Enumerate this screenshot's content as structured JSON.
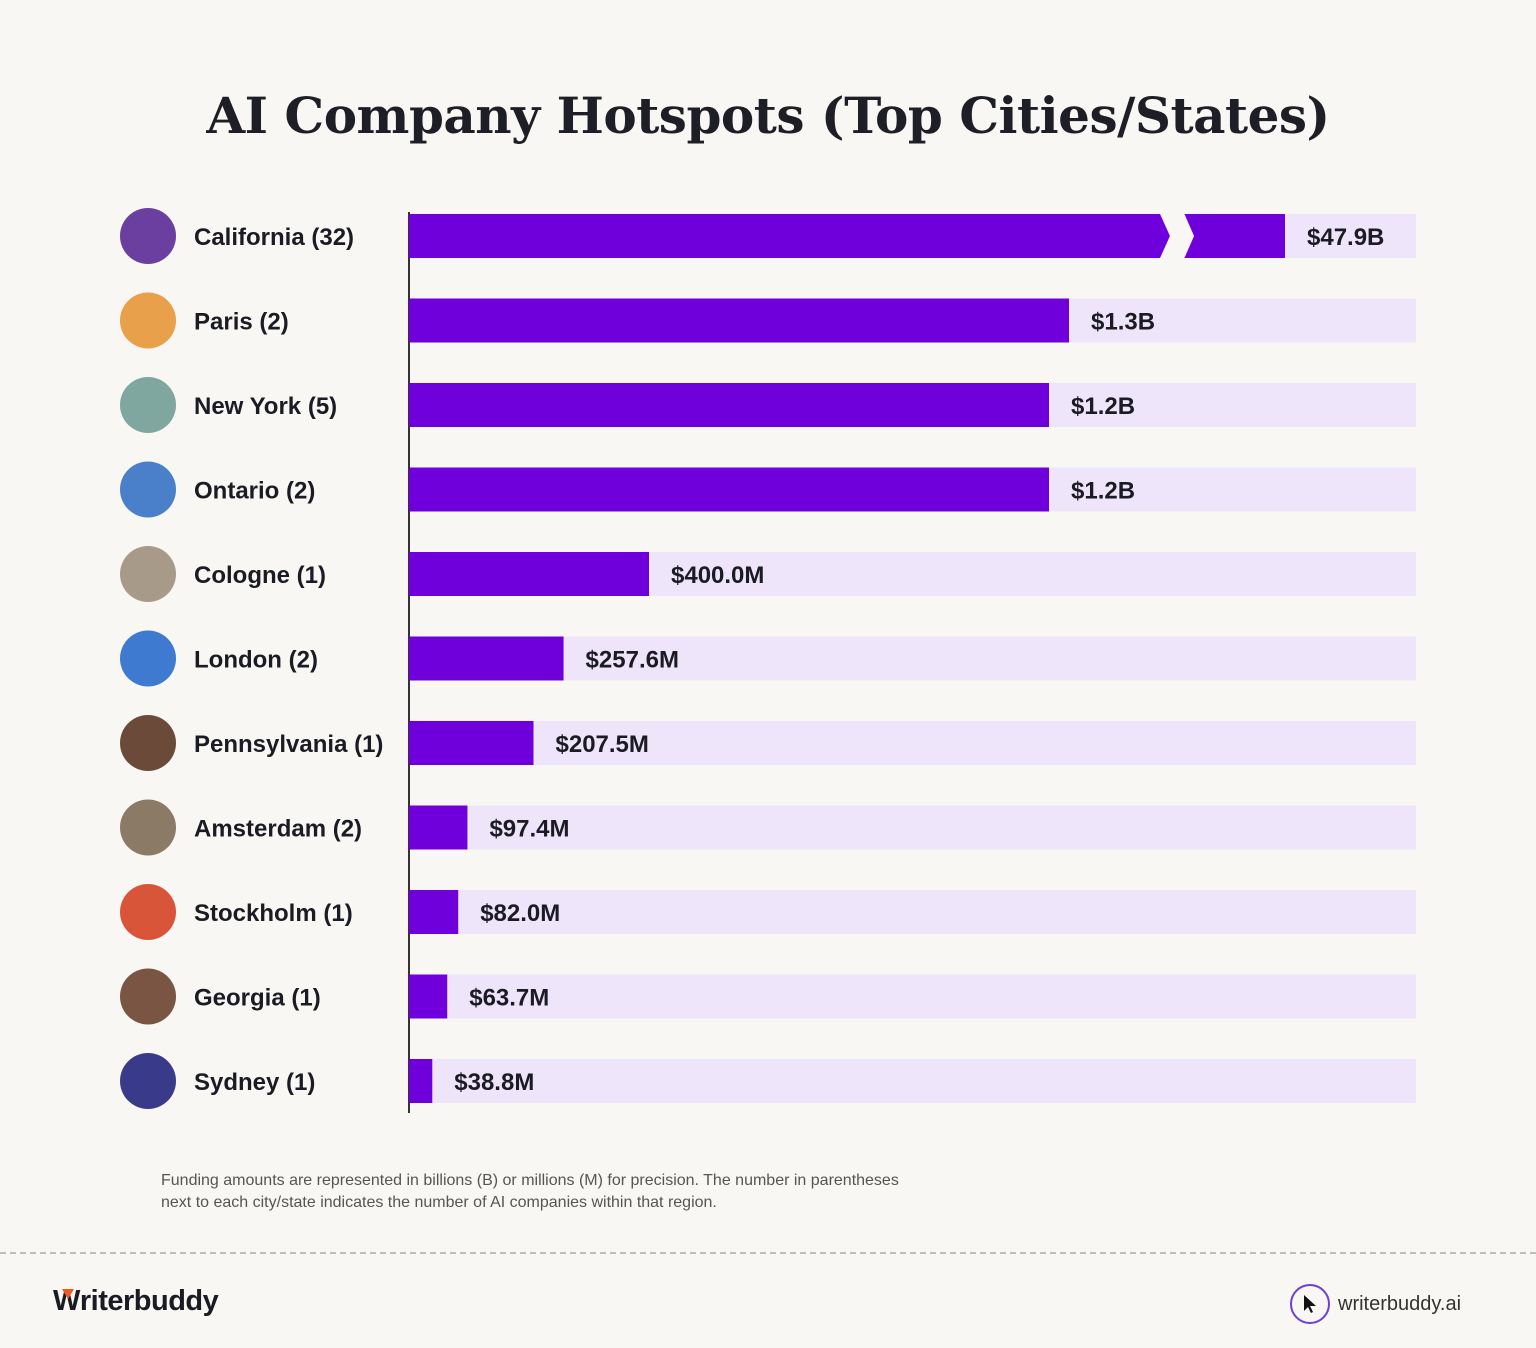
{
  "title": "AI Company Hotspots (Top Cities/States)",
  "chart_data": {
    "type": "bar",
    "orientation": "horizontal",
    "title": "AI Company Hotspots (Top Cities/States)",
    "categories": [
      "California (32)",
      "Paris (2)",
      "New York (5)",
      "Ontario (2)",
      "Cologne (1)",
      "London (2)",
      "Pennsylvania (1)",
      "Amsterdam (2)",
      "Stockholm (1)",
      "Georgia (1)",
      "Sydney (1)"
    ],
    "values_millions": [
      47900,
      1300,
      1200,
      1200,
      400.0,
      257.6,
      207.5,
      97.4,
      82.0,
      63.7,
      38.8
    ],
    "labels": [
      "$47.9B",
      "$1.3B",
      "$1.2B",
      "$1.2B",
      "$400.0M",
      "$257.6M",
      "$207.5M",
      "$97.4M",
      "$82.0M",
      "$63.7M",
      "$38.8M"
    ],
    "broken_bar": "California (32)",
    "icons": [
      "golden-gate-bridge",
      "eiffel-tower",
      "statue-of-liberty",
      "cn-tower",
      "cologne-cathedral",
      "big-ben",
      "liberty-bell",
      "amsterdam-canal-houses",
      "stockholm-buildings",
      "georgia-mansion",
      "sydney-opera-house"
    ],
    "colors": {
      "bar": "#6f00dc",
      "track": "#efe5fa",
      "axis": "#333333"
    }
  },
  "note": "Funding amounts are represented in billions (B) or millions (M) for precision. The number in parentheses next to each city/state indicates the number of AI companies within that region.",
  "footer": {
    "brand": "Writerbuddy",
    "brand_rest": "riterbuddy",
    "brand_initial": "W",
    "site": "writerbuddy.ai"
  }
}
